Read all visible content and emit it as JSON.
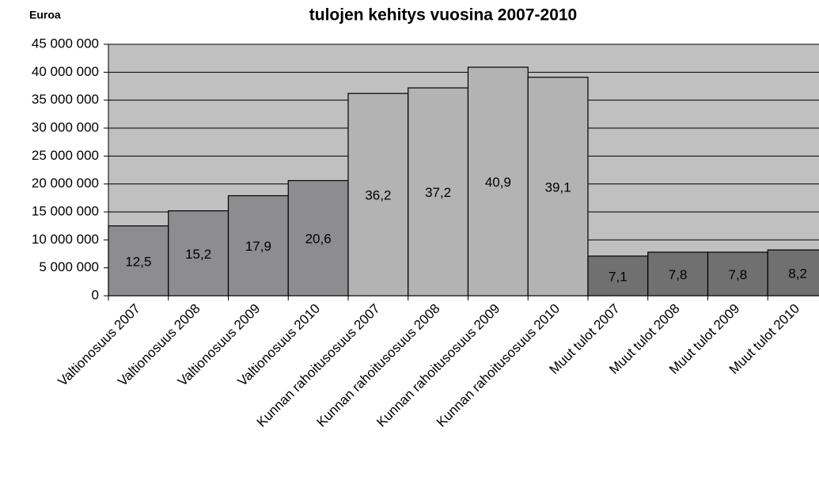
{
  "chart_data": {
    "type": "bar",
    "title": "tulojen kehitys vuosina 2007-2010",
    "y_label": "Euroa",
    "categories": [
      "Valtionosuus 2007",
      "Valtionosuus 2008",
      "Valtionosuus 2009",
      "Valtionosuus 2010",
      "Kunnan rahoitusosuus 2007",
      "Kunnan rahoitusosuus 2008",
      "Kunnan rahoitusosuus 2009",
      "Kunnan rahoitusosuus 2010",
      "Muut tulot  2007",
      "Muut tulot  2008",
      "Muut tulot 2009",
      "Muut tulot 2010"
    ],
    "values": [
      12500000,
      15200000,
      17900000,
      20600000,
      36200000,
      37200000,
      40900000,
      39100000,
      7100000,
      7800000,
      7800000,
      8200000
    ],
    "value_labels": [
      "12,5",
      "15,2",
      "17,9",
      "20,6",
      "36,2",
      "37,2",
      "40,9",
      "39,1",
      "7,1",
      "7,8",
      "7,8",
      "8,2"
    ],
    "colors": [
      "#8d8d8f",
      "#8d8d8f",
      "#8d8d8f",
      "#8d8d8f",
      "#b3b3b3",
      "#b3b3b3",
      "#b3b3b3",
      "#b3b3b3",
      "#707070",
      "#707070",
      "#707070",
      "#707070"
    ],
    "ylim": [
      0,
      45000000
    ],
    "yticks": [
      0,
      {
        "value": 5000000,
        "label": "5 000 000"
      },
      {
        "value": 10000000,
        "label": "10 000 000"
      },
      {
        "value": 15000000,
        "label": "15 000 000"
      },
      {
        "value": 20000000,
        "label": "20 000 000"
      },
      {
        "value": 25000000,
        "label": "25 000 000"
      },
      {
        "value": 30000000,
        "label": "30 000 000"
      },
      {
        "value": 35000000,
        "label": "35 000 000"
      },
      {
        "value": 40000000,
        "label": "40 000 000"
      },
      {
        "value": 45000000,
        "label": "45 000 000"
      }
    ],
    "grid": true
  }
}
